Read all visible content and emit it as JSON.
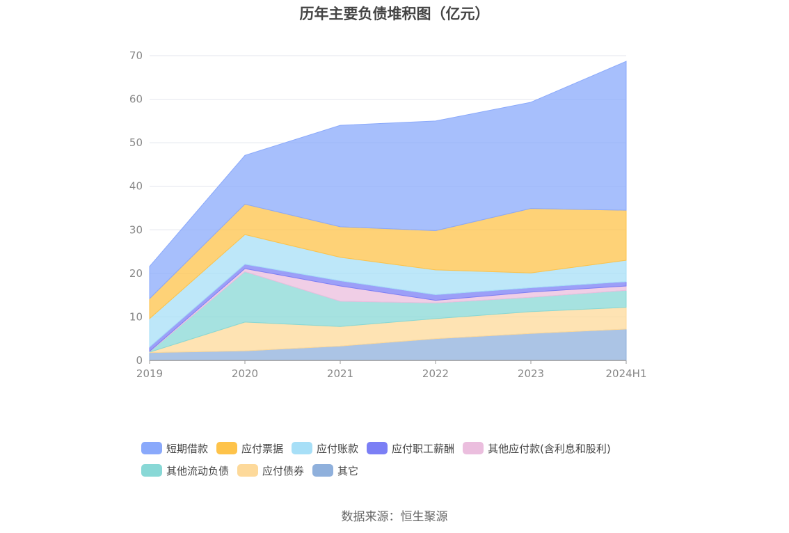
{
  "title": "历年主要负债堆积图（亿元）",
  "source": "数据来源：恒生聚源",
  "chart_data": {
    "type": "area",
    "stacked": true,
    "categories": [
      "2019",
      "2020",
      "2021",
      "2022",
      "2023",
      "2024H1"
    ],
    "ylim": [
      0,
      70
    ],
    "yticks": [
      0,
      10,
      20,
      30,
      40,
      50,
      60,
      70
    ],
    "grid": true,
    "legend_position": "bottom",
    "series": [
      {
        "name": "其它",
        "color": "#8fb0dc",
        "values": [
          1.8,
          2.2,
          3.3,
          5.0,
          6.2,
          7.2
        ]
      },
      {
        "name": "应付债券",
        "color": "#fdd99a",
        "values": [
          0.1,
          6.6,
          4.5,
          4.6,
          5.0,
          5.0
        ]
      },
      {
        "name": "其他流动负债",
        "color": "#88d8d6",
        "values": [
          0.1,
          11.6,
          5.8,
          3.6,
          3.3,
          3.9
        ]
      },
      {
        "name": "其他应付款(含利息和股利)",
        "color": "#ebbede",
        "values": [
          0.1,
          0.7,
          3.5,
          0.6,
          1.2,
          1.0
        ]
      },
      {
        "name": "应付职工薪酬",
        "color": "#7b7ff5",
        "values": [
          1.0,
          1.0,
          1.2,
          1.3,
          1.0,
          1.0
        ]
      },
      {
        "name": "应付账款",
        "color": "#a7dff7",
        "values": [
          6.5,
          6.8,
          5.4,
          5.7,
          3.4,
          4.9
        ]
      },
      {
        "name": "应付票据",
        "color": "#fec34a",
        "values": [
          4.6,
          7.0,
          7.0,
          9.0,
          14.8,
          11.5
        ]
      },
      {
        "name": "短期借款",
        "color": "#8aa9fb",
        "values": [
          7.4,
          11.2,
          23.3,
          25.2,
          24.4,
          34.2
        ]
      }
    ]
  },
  "legend": {
    "row1": [
      {
        "label": "短期借款",
        "color": "#8aa9fb"
      },
      {
        "label": "应付票据",
        "color": "#fec34a"
      },
      {
        "label": "应付账款",
        "color": "#a7dff7"
      },
      {
        "label": "应付职工薪酬",
        "color": "#7b7ff5"
      },
      {
        "label": "其他应付款(含利息和股利)",
        "color": "#ebbede"
      }
    ],
    "row2": [
      {
        "label": "其他流动负债",
        "color": "#88d8d6"
      },
      {
        "label": "应付债券",
        "color": "#fdd99a"
      },
      {
        "label": "其它",
        "color": "#8fb0dc"
      }
    ]
  }
}
